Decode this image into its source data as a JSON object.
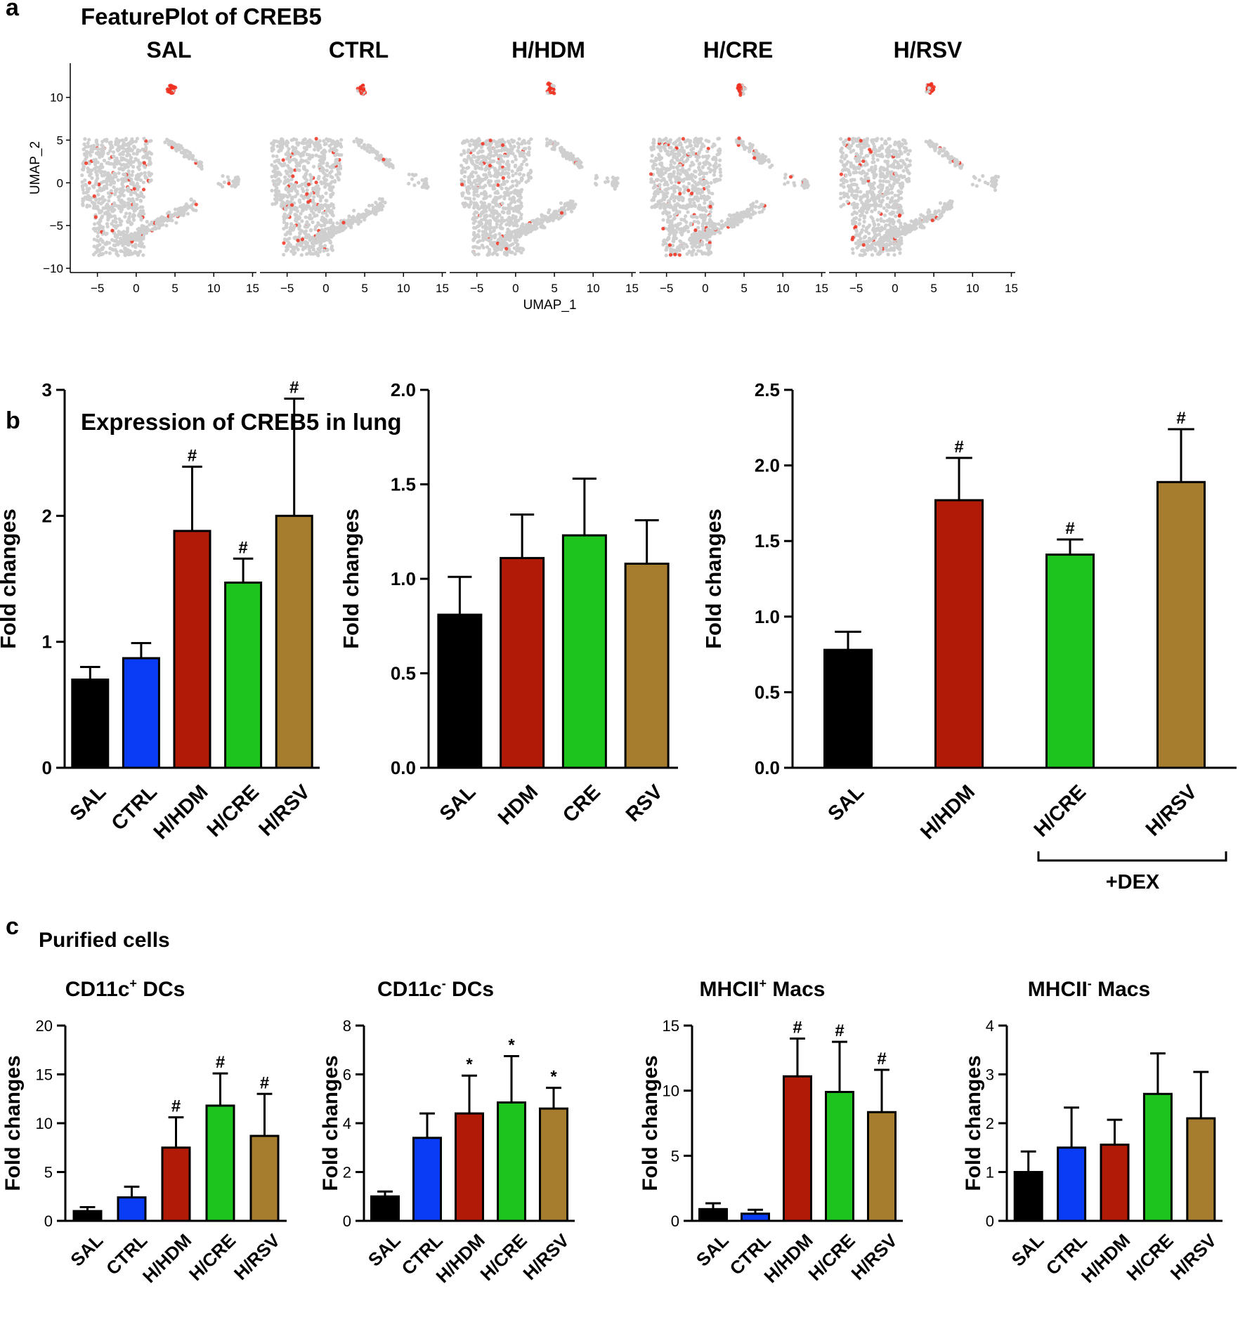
{
  "figure": {
    "panel_a_letter": "a",
    "panel_b_letter": "b",
    "panel_c_letter": "c",
    "panel_a_title": "FeaturePlot of CREB5",
    "panel_b_title": "Expression of CREB5 in lung",
    "panel_c_title": "Purified cells",
    "dex_label": "+DEX"
  },
  "colors": {
    "SAL": "#000000",
    "CTRL": "#0a3cf5",
    "HDM": "#b01a06",
    "CRE": "#1ec41e",
    "RSV": "#a67c2e",
    "umap_gray": "#cfcfcf",
    "umap_expr": "#f03020"
  },
  "chart_data": [
    {
      "id": "umap",
      "type": "scatter",
      "title": "FeaturePlot of CREB5",
      "panels": [
        "SAL",
        "CTRL",
        "H/HDM",
        "H/CRE",
        "H/RSV"
      ],
      "xlabel": "UMAP_1",
      "ylabel": "UMAP_2",
      "xlim": [
        -8.5,
        15.5
      ],
      "ylim": [
        -10.5,
        14
      ],
      "xticks": [
        -5,
        0,
        5,
        10,
        15
      ],
      "yticks": [
        -10,
        -5,
        0,
        5,
        10
      ],
      "xtick_labels": [
        "−5",
        "0",
        "5",
        "10",
        "15"
      ],
      "ytick_labels": [
        "−10",
        "−5",
        "0",
        "5",
        "10"
      ]
    },
    {
      "id": "b1",
      "type": "bar",
      "categories": [
        "SAL",
        "CTRL",
        "H/HDM",
        "H/CRE",
        "H/RSV"
      ],
      "color_keys": [
        "SAL",
        "CTRL",
        "HDM",
        "CRE",
        "RSV"
      ],
      "values": [
        0.7,
        0.87,
        1.88,
        1.47,
        2.0
      ],
      "errors": [
        0.1,
        0.12,
        0.51,
        0.19,
        0.93
      ],
      "significance": [
        "",
        "",
        "#",
        "#",
        "#"
      ],
      "ylabel": "Fold changes",
      "ylim": [
        0,
        3
      ],
      "yticks": [
        0,
        1,
        2,
        3
      ],
      "ytick_labels": [
        "0",
        "1",
        "2",
        "3"
      ]
    },
    {
      "id": "b2",
      "type": "bar",
      "categories": [
        "SAL",
        "HDM",
        "CRE",
        "RSV"
      ],
      "color_keys": [
        "SAL",
        "HDM",
        "CRE",
        "RSV"
      ],
      "values": [
        0.81,
        1.11,
        1.23,
        1.08
      ],
      "errors": [
        0.2,
        0.23,
        0.3,
        0.23
      ],
      "significance": [
        "",
        "",
        "",
        ""
      ],
      "ylabel": "Fold changes",
      "ylim": [
        0,
        2
      ],
      "yticks": [
        0,
        0.5,
        1,
        1.5,
        2
      ],
      "ytick_labels": [
        "0.0",
        "0.5",
        "1.0",
        "1.5",
        "2.0"
      ]
    },
    {
      "id": "b3",
      "type": "bar",
      "categories": [
        "SAL",
        "H/HDM",
        "H/CRE",
        "H/RSV"
      ],
      "color_keys": [
        "SAL",
        "HDM",
        "CRE",
        "RSV"
      ],
      "values": [
        0.78,
        1.77,
        1.41,
        1.89
      ],
      "errors": [
        0.12,
        0.28,
        0.1,
        0.35
      ],
      "significance": [
        "",
        "#",
        "#",
        "#"
      ],
      "ylabel": "Fold changes",
      "ylim": [
        0,
        2.5
      ],
      "yticks": [
        0,
        0.5,
        1,
        1.5,
        2,
        2.5
      ],
      "ytick_labels": [
        "0.0",
        "0.5",
        "1.0",
        "1.5",
        "2.0",
        "2.5"
      ]
    },
    {
      "id": "c1",
      "type": "bar",
      "title_main": "CD11c",
      "title_sup": "+",
      "title_rest": " DCs",
      "categories": [
        "SAL",
        "CTRL",
        "H/HDM",
        "H/CRE",
        "H/RSV"
      ],
      "color_keys": [
        "SAL",
        "CTRL",
        "HDM",
        "CRE",
        "RSV"
      ],
      "values": [
        1.0,
        2.4,
        7.5,
        11.8,
        8.7
      ],
      "errors": [
        0.4,
        1.1,
        3.1,
        3.3,
        4.3
      ],
      "significance": [
        "",
        "",
        "#",
        "#",
        "#"
      ],
      "ylabel": "Fold changes",
      "ylim": [
        0,
        20
      ],
      "yticks": [
        0,
        5,
        10,
        15,
        20
      ],
      "ytick_labels": [
        "0",
        "5",
        "10",
        "15",
        "20"
      ]
    },
    {
      "id": "c2",
      "type": "bar",
      "title_main": "CD11c",
      "title_sup": "-",
      "title_rest": " DCs",
      "categories": [
        "SAL",
        "CTRL",
        "H/HDM",
        "H/CRE",
        "H/RSV"
      ],
      "color_keys": [
        "SAL",
        "CTRL",
        "HDM",
        "CRE",
        "RSV"
      ],
      "values": [
        1.0,
        3.4,
        4.4,
        4.85,
        4.6
      ],
      "errors": [
        0.2,
        1.0,
        1.55,
        1.9,
        0.85
      ],
      "significance": [
        "",
        "",
        "*",
        "*",
        "*"
      ],
      "ylabel": "Fold changes",
      "ylim": [
        0,
        8
      ],
      "yticks": [
        0,
        2,
        4,
        6,
        8
      ],
      "ytick_labels": [
        "0",
        "2",
        "4",
        "6",
        "8"
      ]
    },
    {
      "id": "c3",
      "type": "bar",
      "title_main": "MHCII",
      "title_sup": "+",
      "title_rest": " Macs",
      "categories": [
        "SAL",
        "CTRL",
        "H/HDM",
        "H/CRE",
        "H/RSV"
      ],
      "color_keys": [
        "SAL",
        "CTRL",
        "HDM",
        "CRE",
        "RSV"
      ],
      "values": [
        0.9,
        0.55,
        11.1,
        9.9,
        8.35
      ],
      "errors": [
        0.45,
        0.3,
        2.9,
        3.85,
        3.25
      ],
      "significance": [
        "",
        "",
        "#",
        "#",
        "#"
      ],
      "ylabel": "Fold changes",
      "ylim": [
        0,
        15
      ],
      "yticks": [
        0,
        5,
        10,
        15
      ],
      "ytick_labels": [
        "0",
        "5",
        "10",
        "15"
      ]
    },
    {
      "id": "c4",
      "type": "bar",
      "title_main": "MHCII",
      "title_sup": "-",
      "title_rest": " Macs",
      "categories": [
        "SAL",
        "CTRL",
        "H/HDM",
        "H/CRE",
        "H/RSV"
      ],
      "color_keys": [
        "SAL",
        "CTRL",
        "HDM",
        "CRE",
        "RSV"
      ],
      "values": [
        1.0,
        1.5,
        1.56,
        2.6,
        2.1
      ],
      "errors": [
        0.42,
        0.82,
        0.51,
        0.83,
        0.95
      ],
      "significance": [
        "",
        "",
        "",
        "",
        ""
      ],
      "ylabel": "Fold changes",
      "ylim": [
        0,
        4
      ],
      "yticks": [
        0,
        1,
        2,
        3,
        4
      ],
      "ytick_labels": [
        "0",
        "1",
        "2",
        "3",
        "4"
      ]
    }
  ]
}
